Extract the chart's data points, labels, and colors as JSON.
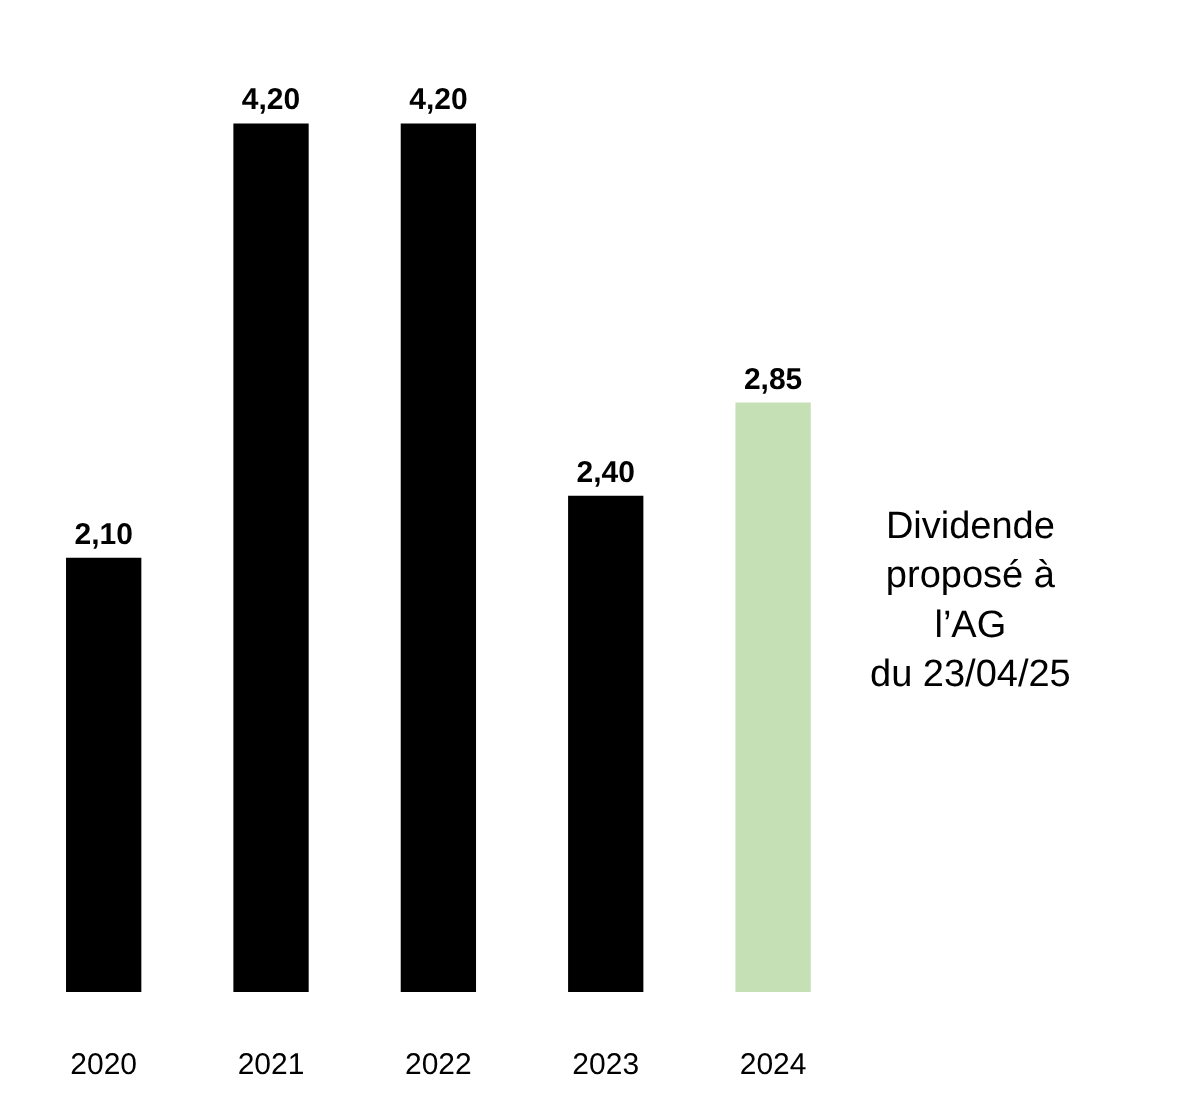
{
  "chart_data": {
    "type": "bar",
    "categories": [
      "2020",
      "2021",
      "2022",
      "2023",
      "2024"
    ],
    "values": [
      2.1,
      4.2,
      4.2,
      2.4,
      2.85
    ],
    "colors": [
      "#000000",
      "#000000",
      "#000000",
      "#000000",
      "#c5e0b4"
    ],
    "value_labels": [
      "2,10",
      "4,20",
      "4,20",
      "2,40",
      "2,85"
    ],
    "annotations": [
      "Dividende\nproposé à\nl’AG\ndu 23/04/25"
    ]
  }
}
